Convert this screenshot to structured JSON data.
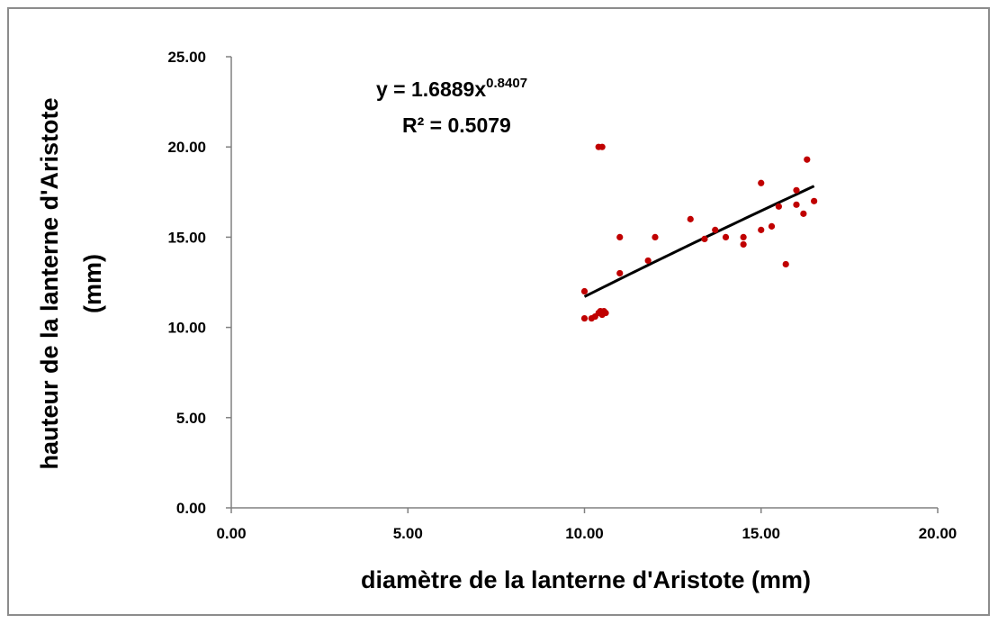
{
  "chart_data": {
    "type": "scatter",
    "xlabel": "diamètre de la lanterne d'Aristote (mm)",
    "ylabel_lines": [
      "hauteur de la lanterne d'Aristote",
      "(mm)"
    ],
    "xlim": [
      0,
      20
    ],
    "ylim": [
      0,
      25
    ],
    "x_ticks": [
      "0.00",
      "5.00",
      "10.00",
      "15.00",
      "20.00"
    ],
    "y_ticks": [
      "0.00",
      "5.00",
      "10.00",
      "15.00",
      "20.00",
      "25.00"
    ],
    "grid": false,
    "legend": "none",
    "colors": {
      "points": "#c00000",
      "trendline": "#000000"
    },
    "trendline": {
      "type": "power",
      "coefficient": 1.6889,
      "exponent": 0.8407,
      "x_range": [
        10.0,
        16.5
      ],
      "equation_prefix": "y = 1.6889x",
      "equation_exponent": "0.8407",
      "r2_label": "R² = 0.5079"
    },
    "series": [
      {
        "x": [
          10.0,
          10.0,
          10.2,
          10.3,
          10.4,
          10.45,
          10.5,
          10.55,
          10.4,
          10.5,
          10.6,
          11.0,
          11.0,
          11.8,
          12.0,
          13.0,
          13.4,
          13.7,
          14.0,
          14.5,
          14.5,
          15.0,
          15.0,
          15.3,
          15.5,
          15.7,
          16.0,
          16.0,
          16.2,
          16.3,
          16.5
        ],
        "y": [
          12.0,
          10.5,
          10.5,
          10.6,
          10.8,
          10.9,
          10.7,
          10.9,
          20.0,
          20.0,
          10.8,
          15.0,
          13.0,
          13.7,
          15.0,
          16.0,
          14.9,
          15.4,
          15.0,
          15.0,
          14.6,
          18.0,
          15.4,
          15.6,
          16.7,
          13.5,
          17.6,
          16.8,
          16.3,
          19.3,
          17.0
        ]
      }
    ]
  }
}
